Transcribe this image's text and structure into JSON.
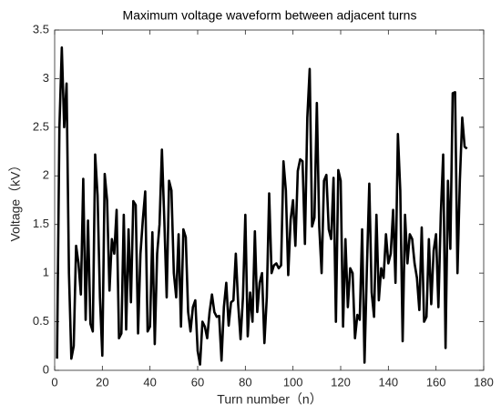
{
  "chart_data": {
    "type": "line",
    "title": "Maximum voltage waveform between adjacent turns",
    "x_label": "Turn number（n）",
    "y_label": "Voltage（kV）",
    "x": [
      1,
      2,
      3,
      4,
      5,
      6,
      7,
      8,
      9,
      10,
      11,
      12,
      13,
      14,
      15,
      16,
      17,
      18,
      19,
      20,
      21,
      22,
      23,
      24,
      25,
      26,
      27,
      28,
      29,
      30,
      31,
      32,
      33,
      34,
      35,
      36,
      37,
      38,
      39,
      40,
      41,
      42,
      43,
      44,
      45,
      46,
      47,
      48,
      49,
      50,
      51,
      52,
      53,
      54,
      55,
      56,
      57,
      58,
      59,
      60,
      61,
      62,
      63,
      64,
      65,
      66,
      67,
      68,
      69,
      70,
      71,
      72,
      73,
      74,
      75,
      76,
      77,
      78,
      79,
      80,
      81,
      82,
      83,
      84,
      85,
      86,
      87,
      88,
      89,
      90,
      91,
      92,
      93,
      94,
      95,
      96,
      97,
      98,
      99,
      100,
      101,
      102,
      103,
      104,
      105,
      106,
      107,
      108,
      109,
      110,
      111,
      112,
      113,
      114,
      115,
      116,
      117,
      118,
      119,
      120,
      121,
      122,
      123,
      124,
      125,
      126,
      127,
      128,
      129,
      130,
      131,
      132,
      133,
      134,
      135,
      136,
      137,
      138,
      139,
      140,
      141,
      142,
      143,
      144,
      145,
      146,
      147,
      148,
      149,
      150,
      151,
      152,
      153,
      154,
      155,
      156,
      157,
      158,
      159,
      160,
      161,
      162,
      163,
      164,
      165,
      166,
      167,
      168,
      169,
      170,
      171,
      172,
      173
    ],
    "series": [
      {
        "name": "Voltage",
        "color": "#000000",
        "values": [
          0.12,
          2.5,
          3.32,
          2.5,
          2.95,
          1.0,
          0.12,
          0.25,
          1.28,
          1.1,
          0.78,
          1.97,
          0.52,
          1.54,
          0.48,
          0.4,
          2.22,
          1.8,
          0.75,
          0.15,
          2.02,
          1.75,
          0.82,
          1.35,
          1.2,
          1.65,
          0.33,
          0.38,
          1.6,
          0.42,
          1.45,
          0.7,
          1.74,
          1.7,
          0.38,
          1.2,
          1.55,
          1.84,
          0.4,
          0.45,
          1.42,
          0.27,
          1.2,
          1.5,
          2.27,
          1.55,
          0.75,
          1.95,
          1.85,
          1.0,
          0.75,
          1.4,
          0.45,
          1.45,
          1.37,
          0.6,
          0.4,
          0.65,
          0.72,
          0.2,
          0.06,
          0.5,
          0.45,
          0.33,
          0.6,
          0.78,
          0.6,
          0.55,
          0.56,
          0.1,
          0.65,
          0.9,
          0.46,
          0.7,
          0.72,
          1.2,
          0.68,
          0.32,
          0.75,
          1.6,
          0.35,
          0.8,
          0.5,
          1.43,
          0.6,
          0.9,
          1.0,
          0.28,
          0.75,
          1.82,
          1.0,
          1.08,
          1.1,
          1.05,
          1.08,
          2.15,
          1.85,
          0.98,
          1.55,
          1.75,
          1.28,
          2.05,
          2.17,
          2.15,
          1.3,
          2.6,
          3.1,
          1.48,
          1.57,
          2.75,
          1.48,
          1.0,
          1.95,
          2.01,
          1.45,
          1.35,
          1.98,
          0.5,
          2.06,
          1.95,
          0.45,
          1.35,
          0.65,
          1.05,
          1.0,
          0.33,
          0.57,
          0.52,
          1.45,
          0.08,
          1.05,
          1.92,
          0.8,
          0.55,
          1.6,
          0.72,
          1.05,
          0.95,
          1.4,
          1.1,
          1.2,
          1.65,
          0.9,
          2.43,
          1.85,
          0.3,
          1.6,
          1.1,
          1.4,
          1.35,
          1.1,
          0.95,
          0.62,
          1.47,
          0.5,
          0.55,
          1.35,
          0.68,
          1.23,
          1.4,
          0.65,
          1.6,
          2.22,
          0.23,
          1.95,
          1.25,
          2.85,
          2.86,
          1.0,
          1.95,
          2.6,
          2.3,
          2.28
        ]
      }
    ],
    "xlim": [
      0,
      180
    ],
    "xticks": [
      0,
      20,
      40,
      60,
      80,
      100,
      120,
      140,
      160,
      180
    ],
    "ylim": [
      0,
      3.5
    ],
    "yticks": [
      0,
      0.5,
      1,
      1.5,
      2,
      2.5,
      3,
      3.5
    ]
  }
}
